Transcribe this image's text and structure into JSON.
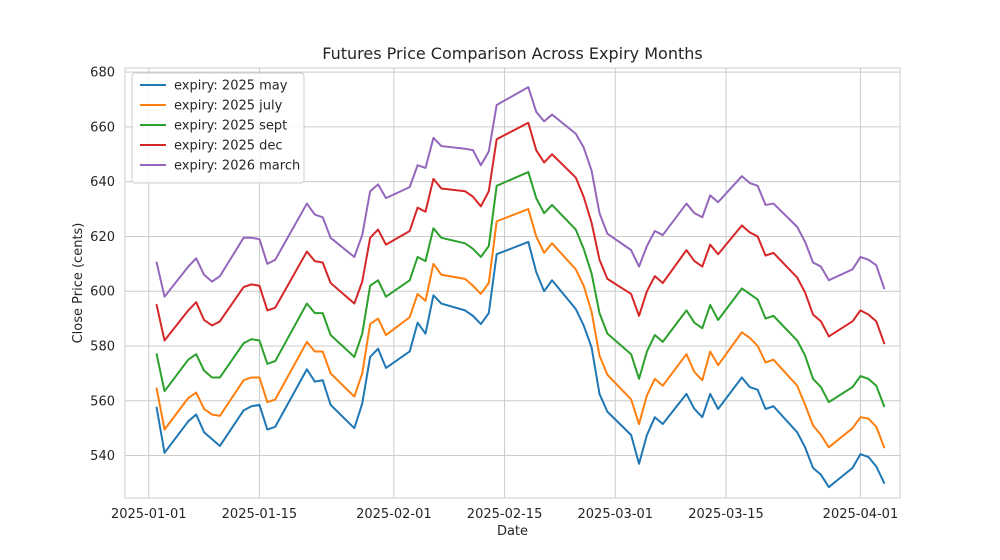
{
  "chart_data": {
    "type": "line",
    "title": "Futures Price Comparison Across Expiry Months",
    "xlabel": "Date",
    "ylabel": "Close Price (cents)",
    "x_tick_labels": [
      "2025-01-01",
      "2025-01-15",
      "2025-02-01",
      "2025-02-15",
      "2025-03-01",
      "2025-03-15",
      "2025-04-01"
    ],
    "x_tick_dates": [
      "2025-01-01",
      "2025-01-15",
      "2025-02-01",
      "2025-02-15",
      "2025-03-01",
      "2025-03-15",
      "2025-04-01"
    ],
    "y_ticks": [
      540,
      560,
      580,
      600,
      620,
      640,
      660,
      680
    ],
    "xlim": [
      "2024-12-29",
      "2025-04-06"
    ],
    "ylim": [
      524.5,
      681.5
    ],
    "grid": true,
    "legend_position": "upper-left",
    "x": [
      "2025-01-02",
      "2025-01-03",
      "2025-01-06",
      "2025-01-07",
      "2025-01-08",
      "2025-01-09",
      "2025-01-10",
      "2025-01-13",
      "2025-01-14",
      "2025-01-15",
      "2025-01-16",
      "2025-01-17",
      "2025-01-21",
      "2025-01-22",
      "2025-01-23",
      "2025-01-24",
      "2025-01-27",
      "2025-01-28",
      "2025-01-29",
      "2025-01-30",
      "2025-01-31",
      "2025-02-03",
      "2025-02-04",
      "2025-02-05",
      "2025-02-06",
      "2025-02-07",
      "2025-02-10",
      "2025-02-11",
      "2025-02-12",
      "2025-02-13",
      "2025-02-14",
      "2025-02-18",
      "2025-02-19",
      "2025-02-20",
      "2025-02-21",
      "2025-02-24",
      "2025-02-25",
      "2025-02-26",
      "2025-02-27",
      "2025-02-28",
      "2025-03-03",
      "2025-03-04",
      "2025-03-05",
      "2025-03-06",
      "2025-03-07",
      "2025-03-10",
      "2025-03-11",
      "2025-03-12",
      "2025-03-13",
      "2025-03-14",
      "2025-03-17",
      "2025-03-18",
      "2025-03-19",
      "2025-03-20",
      "2025-03-21",
      "2025-03-24",
      "2025-03-25",
      "2025-03-26",
      "2025-03-27",
      "2025-03-28",
      "2025-03-31",
      "2025-04-01",
      "2025-04-02",
      "2025-04-03",
      "2025-04-04"
    ],
    "series": [
      {
        "name": "expiry: 2025 may",
        "color": "#1f77b4",
        "values": [
          557.5,
          541,
          552.5,
          555,
          548.5,
          546,
          543.5,
          556.5,
          558,
          558.5,
          549.5,
          550.5,
          571.5,
          567,
          567.5,
          558.5,
          550,
          559,
          576,
          579,
          572,
          578,
          588.5,
          584.5,
          598.5,
          595.5,
          593,
          591,
          588,
          592,
          613.5,
          618,
          607,
          600,
          604,
          593.5,
          587.5,
          579.5,
          562.5,
          556,
          547.5,
          537,
          547.5,
          554,
          551.5,
          562.5,
          557,
          554,
          562.5,
          557,
          568.5,
          565,
          564,
          557,
          558,
          548.5,
          543,
          535.5,
          533,
          528.5,
          535.5,
          540.5,
          539.5,
          536,
          530
        ]
      },
      {
        "name": "expiry: 2025 july",
        "color": "#ff7f0e",
        "values": [
          564.5,
          549.5,
          561,
          563,
          557,
          555,
          554.5,
          567.5,
          568.5,
          568.5,
          559.5,
          560.5,
          581.5,
          578,
          578,
          570,
          561.5,
          570,
          588,
          590,
          584,
          590.5,
          599,
          596.5,
          610,
          606,
          604.5,
          602,
          599,
          603,
          625.5,
          630,
          620,
          614,
          617.5,
          608,
          602,
          592.5,
          576.5,
          569.5,
          560.5,
          551.5,
          562,
          568,
          565.5,
          577,
          570.5,
          567.5,
          578,
          573,
          585,
          583,
          580,
          574,
          575,
          565.5,
          558.5,
          551,
          547.5,
          543,
          550,
          554,
          553.5,
          550.5,
          543
        ]
      },
      {
        "name": "expiry: 2025 sept",
        "color": "#2ca02c",
        "values": [
          577,
          563.5,
          575,
          577,
          571,
          568.5,
          568.5,
          581,
          582.5,
          582,
          573.5,
          574.5,
          595.5,
          592,
          592,
          584,
          576,
          584.5,
          602,
          604,
          598,
          604,
          612.5,
          611,
          623,
          619.5,
          617.5,
          615.5,
          612.5,
          616.5,
          638.5,
          643.5,
          634,
          628.5,
          631.5,
          622.5,
          615.5,
          606.5,
          592,
          584.5,
          577,
          568,
          578,
          584,
          581.5,
          593,
          588.5,
          586.5,
          595,
          589.5,
          601,
          599,
          597,
          590,
          591,
          582,
          576.5,
          568,
          565,
          559.5,
          565,
          569,
          568,
          565.5,
          558
        ]
      },
      {
        "name": "expiry: 2025 dec",
        "color": "#d62728",
        "values": [
          595,
          582,
          593,
          596,
          589.5,
          587.5,
          589,
          601.5,
          602.5,
          602,
          593,
          594,
          614.5,
          611,
          610.5,
          603,
          595.5,
          603.5,
          619.5,
          622.5,
          617,
          622,
          630.5,
          629,
          641,
          637.5,
          636.5,
          634.5,
          631,
          636.5,
          655.5,
          661.5,
          651.5,
          647,
          650,
          641.5,
          634.5,
          625,
          611.5,
          604.5,
          599,
          591,
          600,
          605.5,
          603,
          615,
          611,
          609,
          617,
          613.5,
          624,
          621.5,
          620,
          613,
          614,
          605,
          599.5,
          591.5,
          589,
          583.5,
          589,
          593,
          591.5,
          589,
          581
        ]
      },
      {
        "name": "expiry: 2026 march",
        "color": "#9467bd",
        "values": [
          610.5,
          598,
          609,
          612,
          606,
          603.5,
          605.5,
          619.5,
          619.5,
          619,
          610,
          611.5,
          632,
          628,
          627,
          619.5,
          612.5,
          620.5,
          636.5,
          639,
          634,
          638,
          646,
          645,
          656,
          653,
          652,
          651.5,
          646,
          651,
          668,
          674.5,
          665.5,
          662,
          664.5,
          657.5,
          652.5,
          644,
          628.5,
          621,
          615,
          609,
          616.5,
          622,
          620.5,
          632,
          628.5,
          627,
          635,
          632.5,
          642,
          639.5,
          638.5,
          631.5,
          632,
          623.5,
          618,
          610.5,
          609,
          604,
          608,
          612.5,
          611.5,
          609.5,
          601
        ]
      }
    ]
  }
}
